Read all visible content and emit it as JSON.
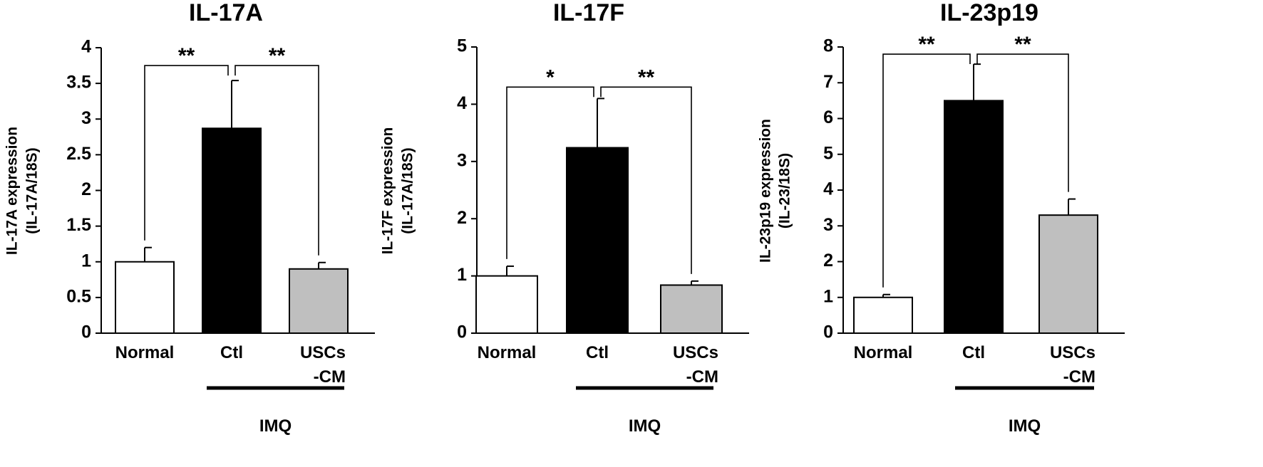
{
  "chart_data": [
    {
      "type": "bar",
      "title": "IL-17A",
      "ylabel_lines": [
        "IL-17A expression",
        "(IL-17A/18S)"
      ],
      "categories": [
        {
          "lines": [
            "Normal"
          ]
        },
        {
          "lines": [
            "Ctl"
          ]
        },
        {
          "lines": [
            "USCs",
            "-CM"
          ]
        }
      ],
      "values": [
        1.0,
        2.87,
        0.9
      ],
      "errors": [
        0.2,
        0.67,
        0.09
      ],
      "ylim": [
        0,
        4
      ],
      "yticks": [
        "0",
        "0.5",
        "1",
        "1.5",
        "2",
        "2.5",
        "3",
        "3.5",
        "4"
      ],
      "ytick_values": [
        0,
        0.5,
        1,
        1.5,
        2,
        2.5,
        3,
        3.5,
        4
      ],
      "group_label": "IMQ",
      "significance": [
        {
          "from": 0,
          "to": 1,
          "label": "**",
          "level": 3.75
        },
        {
          "from": 1,
          "to": 2,
          "label": "**",
          "level": 3.75
        }
      ]
    },
    {
      "type": "bar",
      "title": "IL-17F",
      "ylabel_lines": [
        "IL-17F expression",
        "(IL-17A/18S)"
      ],
      "categories": [
        {
          "lines": [
            "Normal"
          ]
        },
        {
          "lines": [
            "Ctl"
          ]
        },
        {
          "lines": [
            "USCs",
            "-CM"
          ]
        }
      ],
      "values": [
        1.0,
        3.24,
        0.84
      ],
      "errors": [
        0.17,
        0.86,
        0.07
      ],
      "ylim": [
        0,
        5
      ],
      "yticks": [
        "0",
        "1",
        "2",
        "3",
        "4",
        "5"
      ],
      "ytick_values": [
        0,
        1,
        2,
        3,
        4,
        5
      ],
      "group_label": "IMQ",
      "significance": [
        {
          "from": 0,
          "to": 1,
          "label": "*",
          "level": 4.3
        },
        {
          "from": 1,
          "to": 2,
          "label": "**",
          "level": 4.3
        }
      ]
    },
    {
      "type": "bar",
      "title": "IL-23p19",
      "ylabel_lines": [
        "IL-23p19 expression",
        "(IL-23/18S)"
      ],
      "categories": [
        {
          "lines": [
            "Normal"
          ]
        },
        {
          "lines": [
            "Ctl"
          ]
        },
        {
          "lines": [
            "USCs",
            "-CM"
          ]
        }
      ],
      "values": [
        1.0,
        6.5,
        3.3
      ],
      "errors": [
        0.08,
        1.02,
        0.45
      ],
      "ylim": [
        0,
        8
      ],
      "yticks": [
        "0",
        "1",
        "2",
        "3",
        "4",
        "5",
        "6",
        "7",
        "8"
      ],
      "ytick_values": [
        0,
        1,
        2,
        3,
        4,
        5,
        6,
        7,
        8
      ],
      "group_label": "IMQ",
      "significance": [
        {
          "from": 0,
          "to": 1,
          "label": "**",
          "level": 7.8
        },
        {
          "from": 1,
          "to": 2,
          "label": "**",
          "level": 7.8
        }
      ]
    }
  ],
  "colors": {
    "bar_fills": [
      "#ffffff",
      "#000000",
      "#bfbfbf"
    ],
    "stroke": "#000000"
  }
}
